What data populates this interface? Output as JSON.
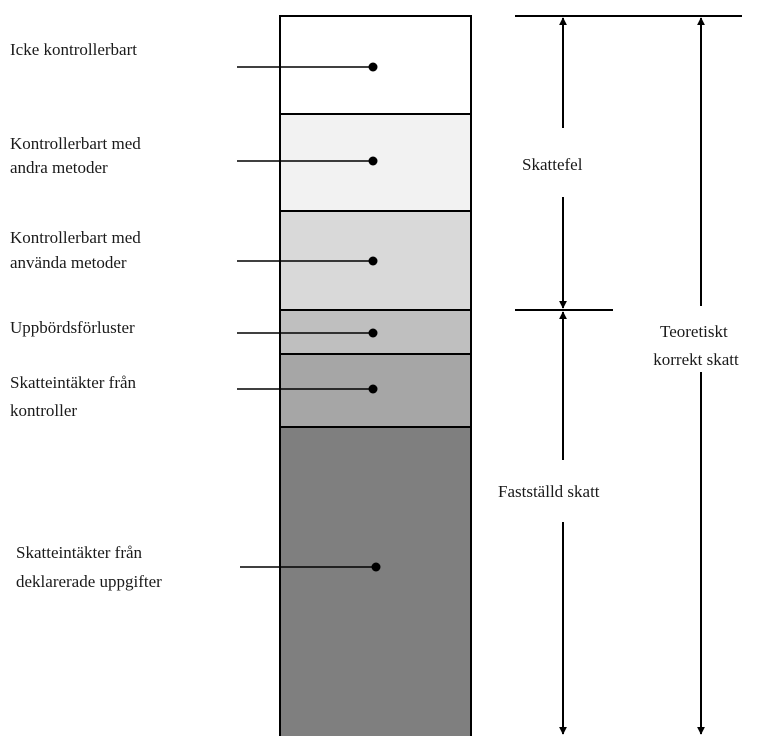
{
  "segments": [
    {
      "id": "icke-kontrollerbart",
      "lines": [
        "Icke kontrollerbart"
      ],
      "fill": "#ffffff"
    },
    {
      "id": "kontrollerbart-andra",
      "lines": [
        "Kontrollerbart med",
        "andra metoder"
      ],
      "fill": "#f2f2f2"
    },
    {
      "id": "kontrollerbart-anvanda",
      "lines": [
        "Kontrollerbart med",
        "använda metoder"
      ],
      "fill": "#d9d9d9"
    },
    {
      "id": "uppbordsforluster",
      "lines": [
        "Uppbördsförluster"
      ],
      "fill": "#bfbfbf"
    },
    {
      "id": "skatteintakter-kontroller",
      "lines": [
        "Skatteintäkter från",
        "kontroller"
      ],
      "fill": "#a6a6a6"
    },
    {
      "id": "skatteintakter-deklarerade",
      "lines": [
        "Skatteintäkter från",
        "deklarerade uppgifter"
      ],
      "fill": "#7f7f7f"
    }
  ],
  "brackets": {
    "skattefel": [
      "Skattefel"
    ],
    "faststalld": [
      "Fastställd skatt"
    ],
    "teoretiskt": [
      "Teoretiskt",
      "korrekt skatt"
    ]
  }
}
